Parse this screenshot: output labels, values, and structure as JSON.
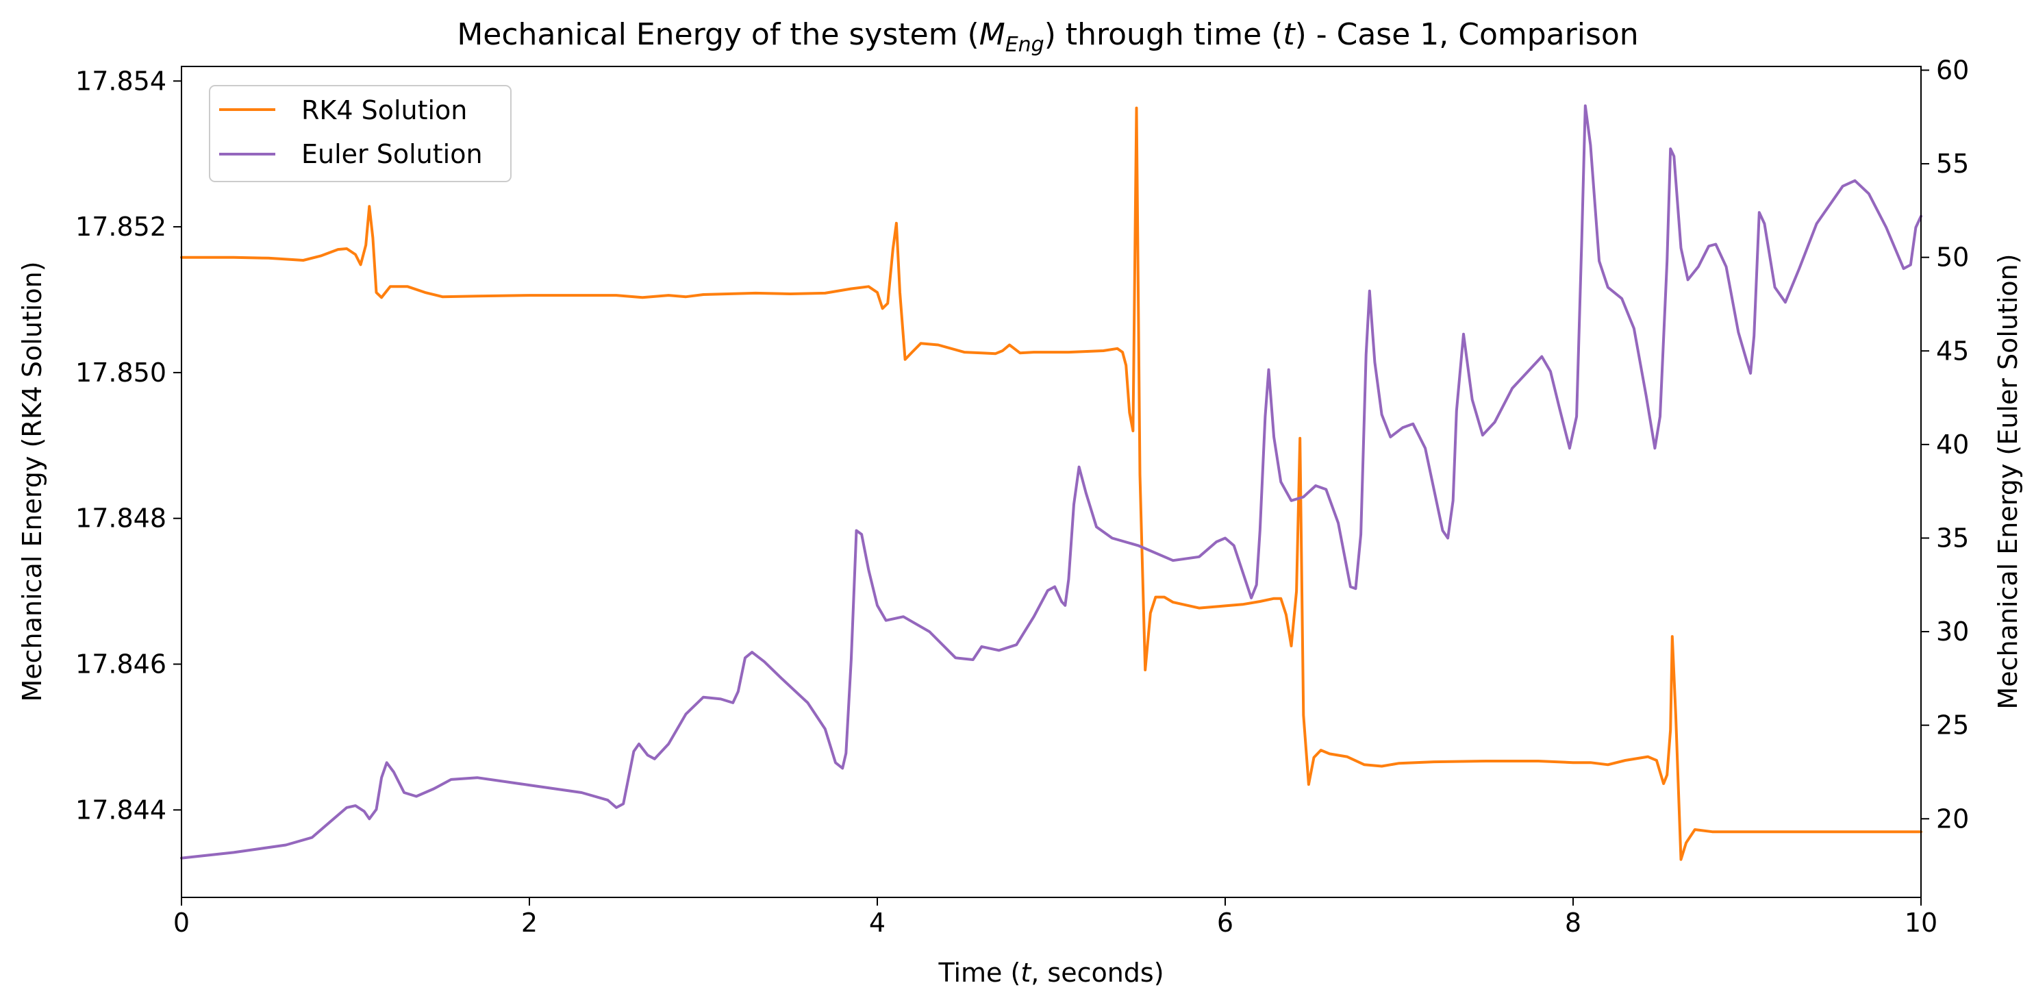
{
  "chart_data": {
    "type": "line",
    "title_parts": {
      "prefix": "Mechanical Energy of the system (",
      "sym": "M",
      "sub": "Eng",
      "middle": ") through time (",
      "t": "t",
      "suffix": ") - Case 1, Comparison"
    },
    "xlabel_parts": {
      "prefix": "Time (",
      "t": "t",
      "suffix": ", seconds)"
    },
    "ylabel_left": "Mechanical Energy (RK4 Solution)",
    "ylabel_right": "Mechanical Energy (Euler Solution)",
    "xlim": [
      0,
      10
    ],
    "ylim_left": [
      17.8428,
      17.8542
    ],
    "ylim_right": [
      15.8,
      60.2
    ],
    "x_ticks": [
      0,
      2,
      4,
      6,
      8,
      10
    ],
    "x_tick_labels": [
      "0",
      "2",
      "4",
      "6",
      "8",
      "10"
    ],
    "y_left_ticks": [
      17.844,
      17.846,
      17.848,
      17.85,
      17.852,
      17.854
    ],
    "y_left_tick_labels": [
      "17.844",
      "17.846",
      "17.848",
      "17.850",
      "17.852",
      "17.854"
    ],
    "y_right_ticks": [
      20,
      25,
      30,
      35,
      40,
      45,
      50,
      55,
      60
    ],
    "y_right_tick_labels": [
      "20",
      "25",
      "30",
      "35",
      "40",
      "45",
      "50",
      "55",
      "60"
    ],
    "grid": false,
    "legend_position": "top-left",
    "series": [
      {
        "name": "RK4 Solution",
        "axis": "left",
        "color": "#ff7f0e",
        "points": [
          [
            0,
            17.85158
          ],
          [
            0.3,
            17.85158
          ],
          [
            0.5,
            17.85157
          ],
          [
            0.7,
            17.85154
          ],
          [
            0.8,
            17.8516
          ],
          [
            0.9,
            17.85169
          ],
          [
            0.95,
            17.8517
          ],
          [
            1.0,
            17.85162
          ],
          [
            1.03,
            17.85148
          ],
          [
            1.06,
            17.85175
          ],
          [
            1.08,
            17.85228
          ],
          [
            1.1,
            17.85185
          ],
          [
            1.12,
            17.8511
          ],
          [
            1.15,
            17.85103
          ],
          [
            1.2,
            17.85118
          ],
          [
            1.3,
            17.85118
          ],
          [
            1.4,
            17.8511
          ],
          [
            1.5,
            17.85104
          ],
          [
            1.7,
            17.85105
          ],
          [
            2.0,
            17.85106
          ],
          [
            2.5,
            17.85106
          ],
          [
            2.65,
            17.85103
          ],
          [
            2.8,
            17.85106
          ],
          [
            2.9,
            17.85104
          ],
          [
            3.0,
            17.85107
          ],
          [
            3.3,
            17.85109
          ],
          [
            3.5,
            17.85108
          ],
          [
            3.7,
            17.85109
          ],
          [
            3.85,
            17.85115
          ],
          [
            3.95,
            17.85118
          ],
          [
            4.0,
            17.8511
          ],
          [
            4.03,
            17.85088
          ],
          [
            4.06,
            17.85095
          ],
          [
            4.09,
            17.8517
          ],
          [
            4.11,
            17.85205
          ],
          [
            4.13,
            17.8511
          ],
          [
            4.16,
            17.85018
          ],
          [
            4.2,
            17.85028
          ],
          [
            4.25,
            17.8504
          ],
          [
            4.35,
            17.85038
          ],
          [
            4.5,
            17.85028
          ],
          [
            4.6,
            17.85027
          ],
          [
            4.68,
            17.85026
          ],
          [
            4.72,
            17.8503
          ],
          [
            4.76,
            17.85038
          ],
          [
            4.82,
            17.85027
          ],
          [
            4.9,
            17.85028
          ],
          [
            5.1,
            17.85028
          ],
          [
            5.3,
            17.8503
          ],
          [
            5.38,
            17.85033
          ],
          [
            5.41,
            17.85028
          ],
          [
            5.43,
            17.8501
          ],
          [
            5.45,
            17.84945
          ],
          [
            5.47,
            17.8492
          ],
          [
            5.49,
            17.85363
          ],
          [
            5.51,
            17.8486
          ],
          [
            5.54,
            17.84592
          ],
          [
            5.57,
            17.8467
          ],
          [
            5.6,
            17.84692
          ],
          [
            5.65,
            17.84692
          ],
          [
            5.7,
            17.84685
          ],
          [
            5.85,
            17.84677
          ],
          [
            6.0,
            17.8468
          ],
          [
            6.1,
            17.84682
          ],
          [
            6.2,
            17.84686
          ],
          [
            6.28,
            17.8469
          ],
          [
            6.32,
            17.8469
          ],
          [
            6.35,
            17.84668
          ],
          [
            6.38,
            17.84625
          ],
          [
            6.41,
            17.847
          ],
          [
            6.43,
            17.8491
          ],
          [
            6.45,
            17.8453
          ],
          [
            6.48,
            17.84435
          ],
          [
            6.51,
            17.84472
          ],
          [
            6.55,
            17.84482
          ],
          [
            6.6,
            17.84477
          ],
          [
            6.7,
            17.84473
          ],
          [
            6.8,
            17.84462
          ],
          [
            6.9,
            17.8446
          ],
          [
            7.0,
            17.84464
          ],
          [
            7.2,
            17.84466
          ],
          [
            7.5,
            17.84467
          ],
          [
            7.8,
            17.84467
          ],
          [
            8.0,
            17.84465
          ],
          [
            8.1,
            17.84465
          ],
          [
            8.2,
            17.84462
          ],
          [
            8.3,
            17.84468
          ],
          [
            8.43,
            17.84473
          ],
          [
            8.48,
            17.84468
          ],
          [
            8.52,
            17.84436
          ],
          [
            8.54,
            17.84448
          ],
          [
            8.56,
            17.8451
          ],
          [
            8.57,
            17.84638
          ],
          [
            8.59,
            17.8453
          ],
          [
            8.62,
            17.84332
          ],
          [
            8.65,
            17.84355
          ],
          [
            8.7,
            17.84373
          ],
          [
            8.8,
            17.8437
          ],
          [
            9.0,
            17.8437
          ],
          [
            9.5,
            17.8437
          ],
          [
            10.0,
            17.8437
          ]
        ]
      },
      {
        "name": "Euler Solution",
        "axis": "right",
        "color": "#9467bd",
        "points": [
          [
            0,
            17.9
          ],
          [
            0.3,
            18.2
          ],
          [
            0.6,
            18.6
          ],
          [
            0.75,
            19.0
          ],
          [
            0.85,
            19.8
          ],
          [
            0.95,
            20.6
          ],
          [
            1.0,
            20.7
          ],
          [
            1.05,
            20.4
          ],
          [
            1.08,
            20.0
          ],
          [
            1.12,
            20.5
          ],
          [
            1.15,
            22.2
          ],
          [
            1.18,
            23.0
          ],
          [
            1.22,
            22.5
          ],
          [
            1.28,
            21.4
          ],
          [
            1.35,
            21.2
          ],
          [
            1.45,
            21.6
          ],
          [
            1.55,
            22.1
          ],
          [
            1.7,
            22.2
          ],
          [
            2.0,
            21.8
          ],
          [
            2.3,
            21.4
          ],
          [
            2.45,
            21.0
          ],
          [
            2.5,
            20.6
          ],
          [
            2.54,
            20.8
          ],
          [
            2.57,
            22.2
          ],
          [
            2.6,
            23.6
          ],
          [
            2.63,
            24.0
          ],
          [
            2.68,
            23.4
          ],
          [
            2.72,
            23.2
          ],
          [
            2.8,
            24.0
          ],
          [
            2.9,
            25.6
          ],
          [
            3.0,
            26.5
          ],
          [
            3.1,
            26.4
          ],
          [
            3.17,
            26.2
          ],
          [
            3.2,
            26.8
          ],
          [
            3.24,
            28.6
          ],
          [
            3.28,
            28.9
          ],
          [
            3.35,
            28.4
          ],
          [
            3.45,
            27.5
          ],
          [
            3.6,
            26.2
          ],
          [
            3.7,
            24.8
          ],
          [
            3.76,
            23.0
          ],
          [
            3.8,
            22.7
          ],
          [
            3.82,
            23.5
          ],
          [
            3.85,
            28.5
          ],
          [
            3.88,
            35.4
          ],
          [
            3.91,
            35.2
          ],
          [
            3.95,
            33.3
          ],
          [
            4.0,
            31.4
          ],
          [
            4.05,
            30.6
          ],
          [
            4.15,
            30.8
          ],
          [
            4.3,
            30.0
          ],
          [
            4.45,
            28.6
          ],
          [
            4.55,
            28.5
          ],
          [
            4.6,
            29.2
          ],
          [
            4.7,
            29.0
          ],
          [
            4.8,
            29.3
          ],
          [
            4.9,
            30.8
          ],
          [
            4.98,
            32.2
          ],
          [
            5.02,
            32.4
          ],
          [
            5.06,
            31.6
          ],
          [
            5.08,
            31.4
          ],
          [
            5.1,
            32.8
          ],
          [
            5.13,
            36.8
          ],
          [
            5.16,
            38.8
          ],
          [
            5.2,
            37.4
          ],
          [
            5.26,
            35.6
          ],
          [
            5.35,
            35.0
          ],
          [
            5.5,
            34.6
          ],
          [
            5.7,
            33.8
          ],
          [
            5.85,
            34.0
          ],
          [
            5.95,
            34.8
          ],
          [
            6.0,
            35.0
          ],
          [
            6.05,
            34.6
          ],
          [
            6.1,
            33.2
          ],
          [
            6.15,
            31.8
          ],
          [
            6.18,
            32.5
          ],
          [
            6.2,
            35.4
          ],
          [
            6.23,
            41.5
          ],
          [
            6.25,
            44.0
          ],
          [
            6.28,
            40.4
          ],
          [
            6.32,
            38.0
          ],
          [
            6.38,
            37.0
          ],
          [
            6.45,
            37.2
          ],
          [
            6.52,
            37.8
          ],
          [
            6.58,
            37.6
          ],
          [
            6.65,
            35.8
          ],
          [
            6.72,
            32.4
          ],
          [
            6.75,
            32.3
          ],
          [
            6.78,
            35.2
          ],
          [
            6.81,
            44.8
          ],
          [
            6.83,
            48.2
          ],
          [
            6.86,
            44.4
          ],
          [
            6.9,
            41.6
          ],
          [
            6.95,
            40.4
          ],
          [
            7.02,
            40.9
          ],
          [
            7.08,
            41.1
          ],
          [
            7.15,
            39.8
          ],
          [
            7.25,
            35.4
          ],
          [
            7.28,
            35.0
          ],
          [
            7.31,
            37.0
          ],
          [
            7.33,
            41.8
          ],
          [
            7.37,
            45.9
          ],
          [
            7.42,
            42.4
          ],
          [
            7.48,
            40.5
          ],
          [
            7.55,
            41.2
          ],
          [
            7.65,
            43.0
          ],
          [
            7.75,
            44.0
          ],
          [
            7.82,
            44.7
          ],
          [
            7.87,
            43.9
          ],
          [
            7.92,
            42.0
          ],
          [
            7.98,
            39.8
          ],
          [
            8.02,
            41.5
          ],
          [
            8.05,
            51.0
          ],
          [
            8.07,
            58.1
          ],
          [
            8.1,
            56.0
          ],
          [
            8.15,
            49.8
          ],
          [
            8.2,
            48.4
          ],
          [
            8.28,
            47.8
          ],
          [
            8.35,
            46.2
          ],
          [
            8.42,
            42.6
          ],
          [
            8.47,
            39.8
          ],
          [
            8.5,
            41.5
          ],
          [
            8.54,
            49.8
          ],
          [
            8.56,
            55.8
          ],
          [
            8.58,
            55.4
          ],
          [
            8.62,
            50.5
          ],
          [
            8.66,
            48.8
          ],
          [
            8.72,
            49.5
          ],
          [
            8.78,
            50.6
          ],
          [
            8.82,
            50.7
          ],
          [
            8.88,
            49.5
          ],
          [
            8.95,
            46.0
          ],
          [
            9.0,
            44.4
          ],
          [
            9.02,
            43.8
          ],
          [
            9.04,
            45.8
          ],
          [
            9.07,
            52.4
          ],
          [
            9.1,
            51.8
          ],
          [
            9.16,
            48.4
          ],
          [
            9.22,
            47.6
          ],
          [
            9.3,
            49.4
          ],
          [
            9.4,
            51.8
          ],
          [
            9.55,
            53.8
          ],
          [
            9.62,
            54.1
          ],
          [
            9.7,
            53.4
          ],
          [
            9.8,
            51.6
          ],
          [
            9.9,
            49.4
          ],
          [
            9.94,
            49.6
          ],
          [
            9.97,
            51.6
          ],
          [
            10.0,
            52.2
          ]
        ]
      }
    ]
  }
}
